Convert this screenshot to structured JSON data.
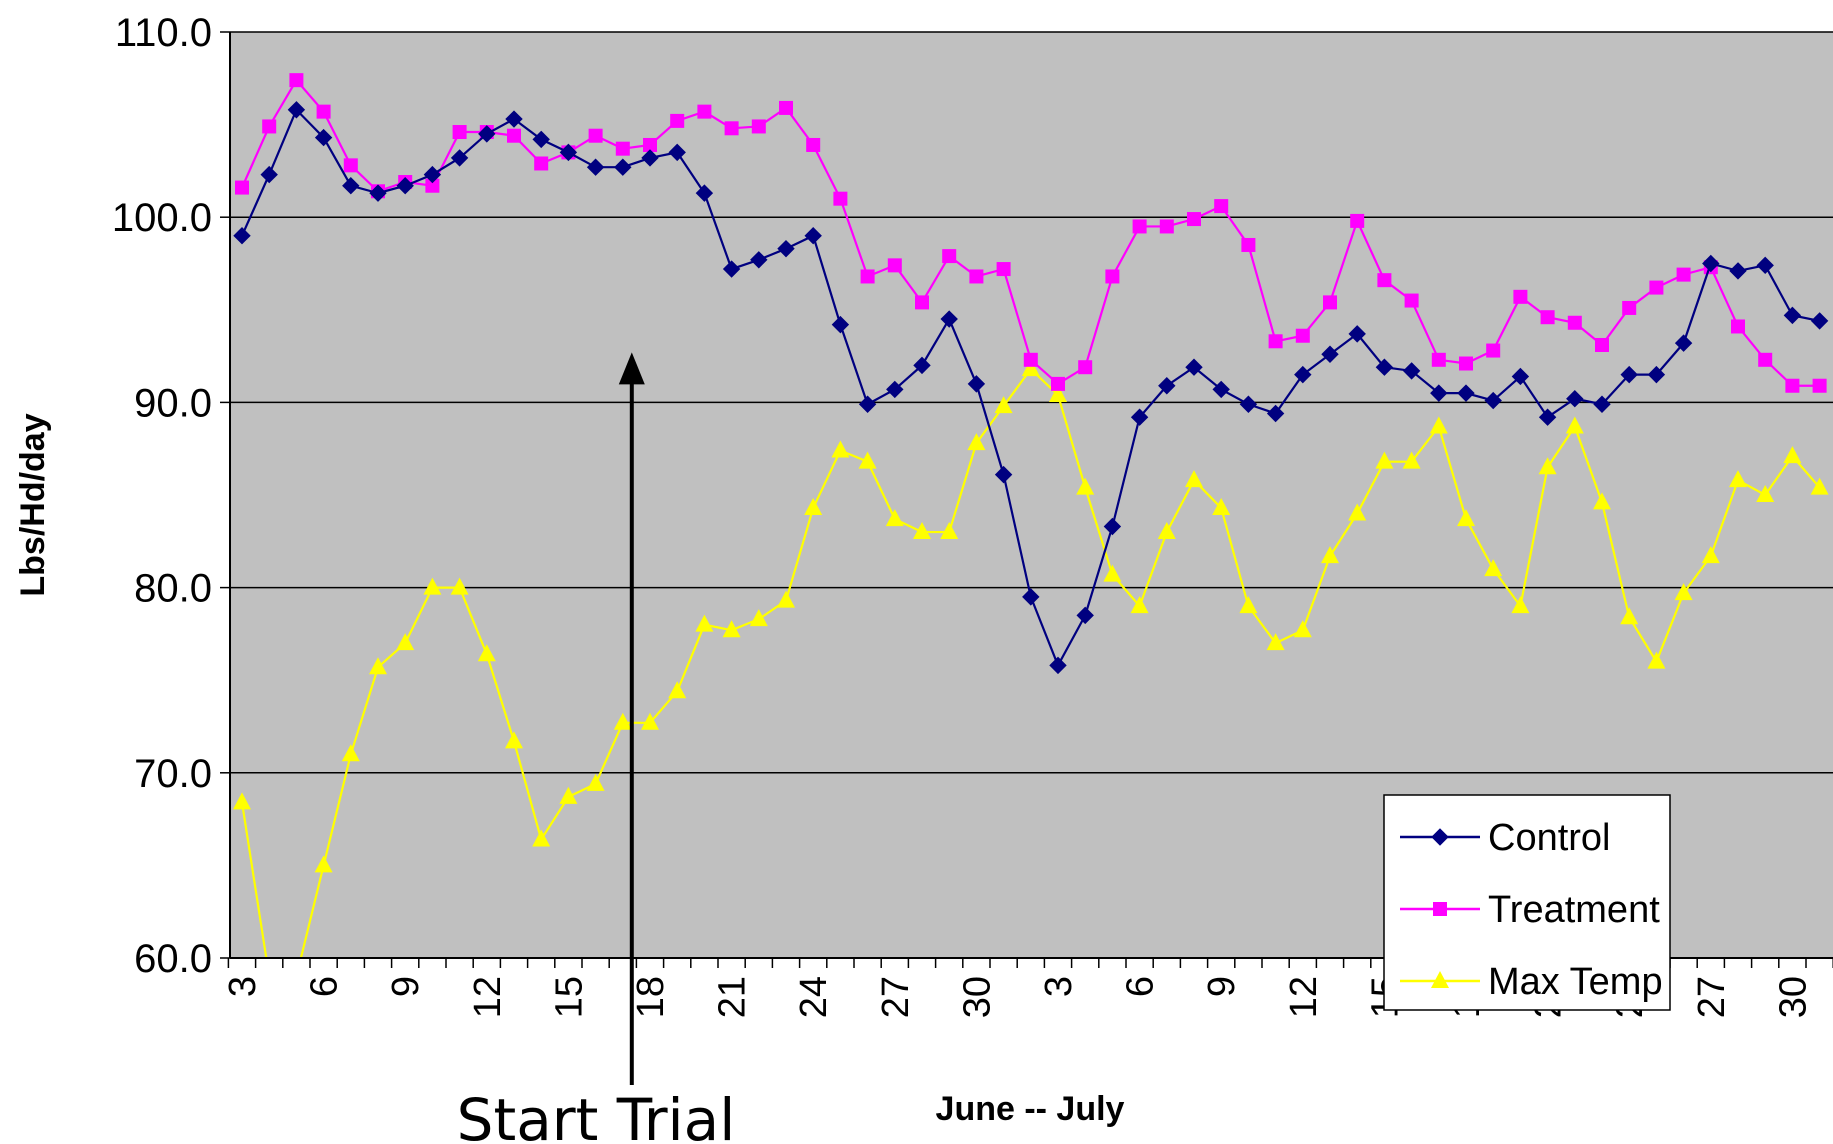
{
  "chart_data": {
    "type": "line",
    "title": "",
    "xlabel": "June  --  July",
    "ylabel": "Lbs/Hd/day",
    "ylim": [
      60.0,
      110.0
    ],
    "y_ticks": [
      "60.0",
      "70.0",
      "80.0",
      "90.0",
      "100.0",
      "110.0"
    ],
    "x": [
      "Jun 3",
      "Jun 4",
      "Jun 5",
      "Jun 6",
      "Jun 7",
      "Jun 8",
      "Jun 9",
      "Jun 10",
      "Jun 11",
      "Jun 12",
      "Jun 13",
      "Jun 14",
      "Jun 15",
      "Jun 16",
      "Jun 17",
      "Jun 18",
      "Jun 19",
      "Jun 20",
      "Jun 21",
      "Jun 22",
      "Jun 23",
      "Jun 24",
      "Jun 25",
      "Jun 26",
      "Jun 27",
      "Jun 28",
      "Jun 29",
      "Jun 30",
      "Jul 1",
      "Jul 2",
      "Jul 3",
      "Jul 4",
      "Jul 5",
      "Jul 6",
      "Jul 7",
      "Jul 8",
      "Jul 9",
      "Jul 10",
      "Jul 11",
      "Jul 12",
      "Jul 13",
      "Jul 14",
      "Jul 15",
      "Jul 16",
      "Jul 17",
      "Jul 18",
      "Jul 19",
      "Jul 20",
      "Jul 21",
      "Jul 22",
      "Jul 23",
      "Jul 24",
      "Jul 25",
      "Jul 26",
      "Jul 27",
      "Jul 28",
      "Jul 29",
      "Jul 30",
      "Jul 31"
    ],
    "x_tick_labels": [
      "3",
      "6",
      "9",
      "12",
      "15",
      "18",
      "21",
      "24",
      "27",
      "30",
      "3",
      "6",
      "9",
      "12",
      "15",
      "18",
      "21",
      "24",
      "27",
      "30"
    ],
    "x_tick_index": [
      0,
      3,
      6,
      9,
      12,
      15,
      18,
      21,
      24,
      27,
      30,
      33,
      36,
      39,
      42,
      45,
      48,
      51,
      54,
      57
    ],
    "grid": "horizontal",
    "legend_position": "bottom-right",
    "background_color": "#c0c0c0",
    "series": [
      {
        "name": "Control",
        "color": "#000080",
        "marker": "diamond",
        "values": [
          99.0,
          102.3,
          105.8,
          104.3,
          101.7,
          101.3,
          101.7,
          102.3,
          103.2,
          104.5,
          105.3,
          104.2,
          103.5,
          102.7,
          102.7,
          103.2,
          103.5,
          101.3,
          97.2,
          97.7,
          98.3,
          99.0,
          94.2,
          89.9,
          90.7,
          92.0,
          94.5,
          91.0,
          86.1,
          79.5,
          75.8,
          78.5,
          83.3,
          89.2,
          90.9,
          91.9,
          90.7,
          89.9,
          89.4,
          91.5,
          92.6,
          93.7,
          91.9,
          91.7,
          90.5,
          90.5,
          90.1,
          91.4,
          89.2,
          90.2,
          89.9,
          91.5,
          91.5,
          93.2,
          97.5,
          97.1,
          97.4,
          94.7,
          94.4
        ]
      },
      {
        "name": "Treatment",
        "color": "#ff00ff",
        "marker": "square",
        "values": [
          101.6,
          104.9,
          107.4,
          105.7,
          102.8,
          101.4,
          101.9,
          101.7,
          104.6,
          104.6,
          104.4,
          102.9,
          103.5,
          104.4,
          103.7,
          103.9,
          105.2,
          105.7,
          104.8,
          104.9,
          105.9,
          103.9,
          101.0,
          96.8,
          97.4,
          95.4,
          97.9,
          96.8,
          97.2,
          92.3,
          91.0,
          91.9,
          96.8,
          99.5,
          99.5,
          99.9,
          100.6,
          98.5,
          93.3,
          93.6,
          95.4,
          99.8,
          96.6,
          95.5,
          92.3,
          92.1,
          92.8,
          95.7,
          94.6,
          94.3,
          93.1,
          95.1,
          96.2,
          96.9,
          97.3,
          94.1,
          92.3,
          90.9,
          90.9
        ]
      },
      {
        "name": "Max Temp",
        "color": "#ffff00",
        "marker": "triangle",
        "values": [
          68.4,
          59.0,
          59.0,
          65.0,
          71.0,
          75.7,
          77.0,
          80.0,
          80.0,
          76.4,
          71.7,
          66.4,
          68.7,
          69.4,
          72.7,
          72.7,
          74.4,
          78.0,
          77.7,
          78.3,
          79.3,
          84.3,
          87.4,
          86.8,
          83.7,
          83.0,
          83.0,
          87.8,
          89.8,
          91.8,
          90.4,
          85.4,
          80.7,
          79.0,
          83.0,
          85.8,
          84.3,
          79.0,
          77.0,
          77.7,
          81.7,
          84.0,
          86.8,
          86.8,
          88.7,
          83.7,
          81.0,
          79.0,
          86.5,
          88.7,
          84.6,
          78.4,
          76.0,
          79.7,
          81.7,
          85.8,
          85.0,
          87.1,
          85.4
        ]
      }
    ],
    "annotations": [
      {
        "text": "Start Trial",
        "x": "Jun 17",
        "arrow_to_y": 92.7
      }
    ]
  }
}
